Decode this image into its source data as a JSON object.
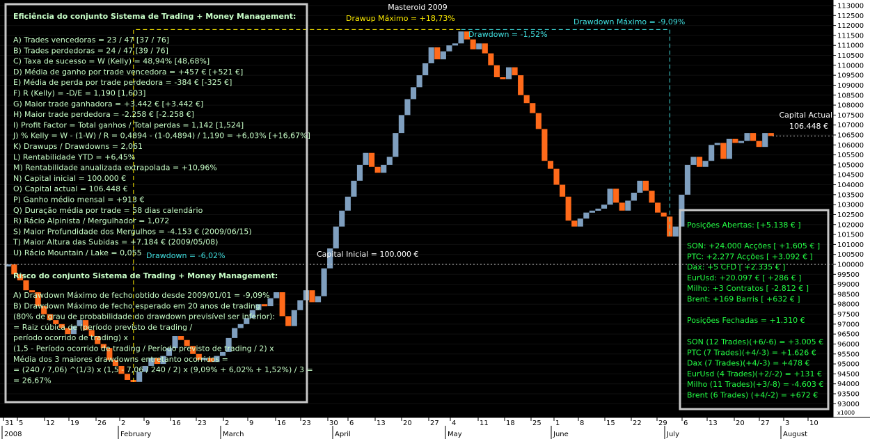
{
  "chart_data": {
    "type": "candlestick-equity",
    "title": "Masteroid 2009",
    "y_axis": {
      "min": 92500,
      "max": 113250,
      "major_step": 500,
      "labels": [
        "113000",
        "112500",
        "112000",
        "111500",
        "111000",
        "110500",
        "110000",
        "109500",
        "109000",
        "108500",
        "108000",
        "107500",
        "107000",
        "106500",
        "106000",
        "105500",
        "105000",
        "104500",
        "104000",
        "103500",
        "103000",
        "102500",
        "102000",
        "101500",
        "101000",
        "100500",
        "100000",
        "99500",
        "99000",
        "98500",
        "98000",
        "97500",
        "97000",
        "96500",
        "96000",
        "95500",
        "95000",
        "94500",
        "94000",
        "93500",
        "93000"
      ],
      "unit_label": "x1000"
    },
    "x_axis": {
      "day_ticks": [
        "31",
        "5",
        "12",
        "19",
        "26",
        "2",
        "9",
        "16",
        "23",
        "2",
        "9",
        "16",
        "23",
        "30",
        "6",
        "13",
        "20",
        "27",
        "4",
        "11",
        "18",
        "25",
        "1",
        "8",
        "15",
        "22",
        "29",
        "6",
        "13",
        "20",
        "27",
        "3",
        "10"
      ],
      "month_labels": [
        "2008",
        "February",
        "March",
        "April",
        "May",
        "June",
        "July",
        "August"
      ]
    },
    "colors": {
      "up": "#7f9fbf",
      "down": "#ff6a1a",
      "background": "#000000",
      "panel_border": "#c8c8c8",
      "text": "#c8ffc8",
      "green_text": "#22ff44",
      "drawup": "#ffee00",
      "drawdown": "#40e0e0"
    },
    "series": {
      "capital": [
        100000,
        99500,
        99200,
        98700,
        98600,
        97900,
        97500,
        97200,
        97000,
        96800,
        96500,
        96900,
        97200,
        96700,
        96400,
        96000,
        95800,
        95200,
        94900,
        94500,
        94200,
        94100,
        94600,
        94900,
        95300,
        95000,
        95400,
        95800,
        96400,
        96200,
        95900,
        95500,
        95200,
        95300,
        95100,
        95400,
        95600,
        96300,
        96800,
        97000,
        97300,
        97700,
        98000,
        97900,
        98300,
        98600,
        97400,
        96900,
        97700,
        98200,
        98700,
        98100,
        98400,
        99800,
        100800,
        101900,
        102700,
        103400,
        104200,
        105000,
        105600,
        104900,
        104600,
        105000,
        105400,
        106600,
        107500,
        108300,
        108900,
        109500,
        110100,
        110900,
        110300,
        110700,
        111000,
        111100,
        111700,
        111300,
        110800,
        111100,
        110600,
        110000,
        109400,
        109300,
        109900,
        109500,
        108500,
        108100,
        107600,
        106800,
        105200,
        104800,
        104000,
        103400,
        102200,
        101900,
        102300,
        102600,
        102700,
        102800,
        103000,
        103800,
        103100,
        102700,
        103200,
        103600,
        104200,
        103700,
        103100,
        102600,
        102400,
        101400,
        101900,
        103500,
        105000,
        105400,
        104900,
        105200,
        106000,
        106100,
        105300,
        106300,
        106100,
        106200,
        106600,
        106200,
        105900,
        106600,
        106448
      ],
      "start_value": "Capital Inicial = 100.000 €",
      "current_value": "106.448 €",
      "current_label": "Capital Actual"
    },
    "annotations": {
      "drawup": "Drawup Máximo = +18,73%",
      "drawdown_max": "Drawdown Máximo = -9,09%",
      "drawdown_2": "Drawdown = -1,52%",
      "drawdown_1": "Drawdown = -6,02%"
    }
  },
  "left_panel": {
    "title": "Eficiência do conjunto Sistema de Trading + Money Management:",
    "lines": [
      "A) Trades vencedoras = 23 / 47   [37 / 76]",
      "B) Trades perdedoras = 24 / 47   [39 / 76]",
      "C) Taxa de sucesso = W (Kelly) = 48,94%   [48,68%]",
      "D) Média de ganho por trade vencedora = +457 €   [+521 €]",
      "E) Média de perda por trade perdedora = -384 €   [-325 €]",
      "F) R (Kelly) = -D/E = 1,190   [1,603]",
      "G) Maior trade ganhadora = +3.442 €   [+3.442 €]",
      "H) Maior trade perdedora = -2.258 €   [-2.258 €]",
      "I) Profit Factor = Total ganhos / Total perdas = 1,142   [1,524]",
      "J) % Kelly = W - (1-W) / R = 0,4894 - (1-0,4894) / 1,190 = +6,03%   [+16,67%]",
      "K) Drawups / Drawdowns = 2,061",
      "L) Rentabilidade YTD = +6,45%",
      "M) Rentabilidade anualizada extrapolada = +10,96%",
      "N) Capital inicial = 100.000 €",
      "O) Capital actual = 106.448 €",
      "P) Ganho médio mensal = +913 €",
      "Q) Duração média por trade = 58 dias calendário",
      "R) Rácio Alpinista / Mergulhador = 1,072",
      "S) Maior Profundidade dos Mergulhos = -4.153 € (2009/06/15)",
      "T) Maior Altura das Subidas = +7.184 € (2009/05/08)",
      "U) Rácio Mountain / Lake = 0,055"
    ],
    "risk_title": "Risco do conjunto Sistema de Trading + Money Management:",
    "risk_lines": [
      "A) Drawdown Máximo de fecho obtido desde 2009/01/01 = -9,09%",
      "B) Drawdown Máximo de fecho esperado em 20 anos de trading",
      "(80% de grau de probabilidade do drawdown previsível ser inferior):",
      "= Raiz cúbica de (período previsto de trading /",
      "período ocorrido de trading) x",
      "(1,5 - Período ocorrido de trading / Período previsto de trading / 2) x",
      "Média dos 3 maiores drawdowns entretanto ocorridos =",
      "= (240 / 7,06) ^(1/3) x (1,5 - 7,06 / 240 / 2) x (9,09% + 6,02% + 1,52%) / 3 =",
      "= 26,67%"
    ]
  },
  "right_panel": {
    "open_title": "Posições Abertas: [+5.138 € ]",
    "open_lines": [
      "SON: +24.000 Acções [ +1.605 € ]",
      "PTC: +2.277 Acções [ +3.092 € ]",
      "Dax: +5 CFD [ +2.335 € ]",
      "EurUsd: +20.097 € [ +286 € ]",
      "Milho: +3 Contratos [ -2.812 € ]",
      "Brent: +169 Barris [ +632 € ]"
    ],
    "closed_title": "Posições Fechadas = +1.310 €",
    "closed_lines": [
      "SON (12 Trades)(+6/-6) = +3.005 €",
      "PTC (7 Trades)(+4/-3) = +1.626 €",
      "Dax (7 Trades)(+4/-3) = +478 €",
      "EurUsd (4 Trades)(+2/-2) = +131 €",
      "Milho (11 Trades)(+3/-8) = -4.603 €",
      "Brent (6 Trades) (+4/-2) = +672 €"
    ]
  }
}
